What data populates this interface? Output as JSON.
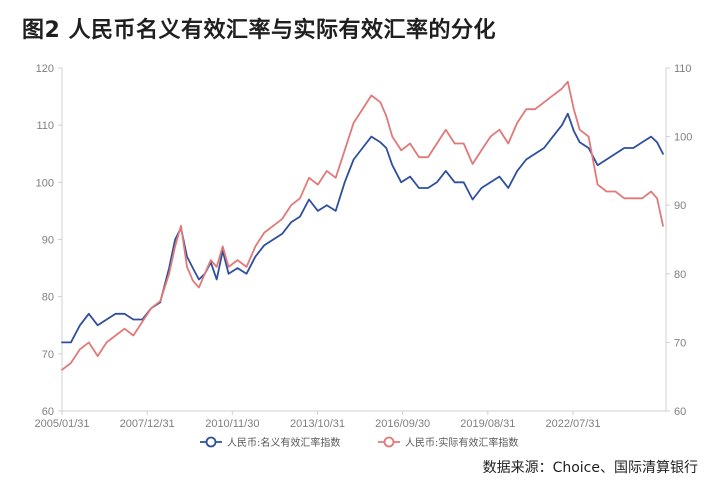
{
  "title": "图2  人民币名义有效汇率与实际有效汇率的分化",
  "source": "数据来源：Choice、国际清算银行",
  "chart_data": {
    "type": "line",
    "title": "图2  人民币名义有效汇率与实际有效汇率的分化",
    "x_tick_labels": [
      "2005/01/31",
      "2007/12/31",
      "2010/11/30",
      "2013/10/31",
      "2016/09/30",
      "2019/08/31",
      "2022/07/31"
    ],
    "x_range": [
      2005.0,
      2025.3
    ],
    "y_left": {
      "range": [
        60,
        120
      ],
      "ticks": [
        60,
        70,
        80,
        90,
        100,
        110,
        120
      ]
    },
    "y_right": {
      "range": [
        60,
        110
      ],
      "ticks": [
        60,
        70,
        80,
        90,
        100,
        110
      ]
    },
    "grid": false,
    "legend_position": "bottom",
    "series": [
      {
        "name": "人民币:名义有效汇率指数",
        "axis": "left",
        "color": "#2e4f9e",
        "x": [
          2005.0,
          2005.3,
          2005.6,
          2005.9,
          2006.2,
          2006.5,
          2006.8,
          2007.1,
          2007.4,
          2007.7,
          2008.0,
          2008.3,
          2008.6,
          2008.8,
          2009.0,
          2009.2,
          2009.4,
          2009.6,
          2009.8,
          2010.0,
          2010.2,
          2010.4,
          2010.6,
          2010.9,
          2011.2,
          2011.5,
          2011.8,
          2012.1,
          2012.4,
          2012.7,
          2013.0,
          2013.3,
          2013.6,
          2013.9,
          2014.2,
          2014.5,
          2014.8,
          2015.1,
          2015.4,
          2015.7,
          2015.9,
          2016.1,
          2016.4,
          2016.7,
          2017.0,
          2017.3,
          2017.6,
          2017.9,
          2018.2,
          2018.5,
          2018.8,
          2019.1,
          2019.4,
          2019.7,
          2020.0,
          2020.3,
          2020.6,
          2020.9,
          2021.2,
          2021.5,
          2021.8,
          2022.0,
          2022.2,
          2022.4,
          2022.7,
          2023.0,
          2023.3,
          2023.6,
          2023.9,
          2024.2,
          2024.5,
          2024.8,
          2025.0,
          2025.2
        ],
        "y": [
          72,
          72,
          75,
          77,
          75,
          76,
          77,
          77,
          76,
          76,
          78,
          79,
          85,
          90,
          92,
          87,
          85,
          83,
          84,
          86,
          83,
          88,
          84,
          85,
          84,
          87,
          89,
          90,
          91,
          93,
          94,
          97,
          95,
          96,
          95,
          100,
          104,
          106,
          108,
          107,
          106,
          103,
          100,
          101,
          99,
          99,
          100,
          102,
          100,
          100,
          97,
          99,
          100,
          101,
          99,
          102,
          104,
          105,
          106,
          108,
          110,
          112,
          109,
          107,
          106,
          103,
          104,
          105,
          106,
          106,
          107,
          108,
          107,
          105
        ]
      },
      {
        "name": "人民币:实际有效汇率指数",
        "axis": "right",
        "color": "#e07a78",
        "x": [
          2005.0,
          2005.3,
          2005.6,
          2005.9,
          2006.2,
          2006.5,
          2006.8,
          2007.1,
          2007.4,
          2007.7,
          2008.0,
          2008.3,
          2008.6,
          2008.8,
          2009.0,
          2009.2,
          2009.4,
          2009.6,
          2009.8,
          2010.0,
          2010.2,
          2010.4,
          2010.6,
          2010.9,
          2011.2,
          2011.5,
          2011.8,
          2012.1,
          2012.4,
          2012.7,
          2013.0,
          2013.3,
          2013.6,
          2013.9,
          2014.2,
          2014.5,
          2014.8,
          2015.1,
          2015.4,
          2015.7,
          2015.9,
          2016.1,
          2016.4,
          2016.7,
          2017.0,
          2017.3,
          2017.6,
          2017.9,
          2018.2,
          2018.5,
          2018.8,
          2019.1,
          2019.4,
          2019.7,
          2020.0,
          2020.3,
          2020.6,
          2020.9,
          2021.2,
          2021.5,
          2021.8,
          2022.0,
          2022.2,
          2022.4,
          2022.7,
          2023.0,
          2023.3,
          2023.6,
          2023.9,
          2024.2,
          2024.5,
          2024.8,
          2025.0,
          2025.2
        ],
        "y": [
          66,
          67,
          69,
          70,
          68,
          70,
          71,
          72,
          71,
          73,
          75,
          76,
          80,
          84,
          87,
          81,
          79,
          78,
          80,
          82,
          81,
          84,
          81,
          82,
          81,
          84,
          86,
          87,
          88,
          90,
          91,
          94,
          93,
          95,
          94,
          98,
          102,
          104,
          106,
          105,
          103,
          100,
          98,
          99,
          97,
          97,
          99,
          101,
          99,
          99,
          96,
          98,
          100,
          101,
          99,
          102,
          104,
          104,
          105,
          106,
          107,
          108,
          104,
          101,
          100,
          93,
          92,
          92,
          91,
          91,
          91,
          92,
          91,
          87
        ]
      }
    ]
  }
}
